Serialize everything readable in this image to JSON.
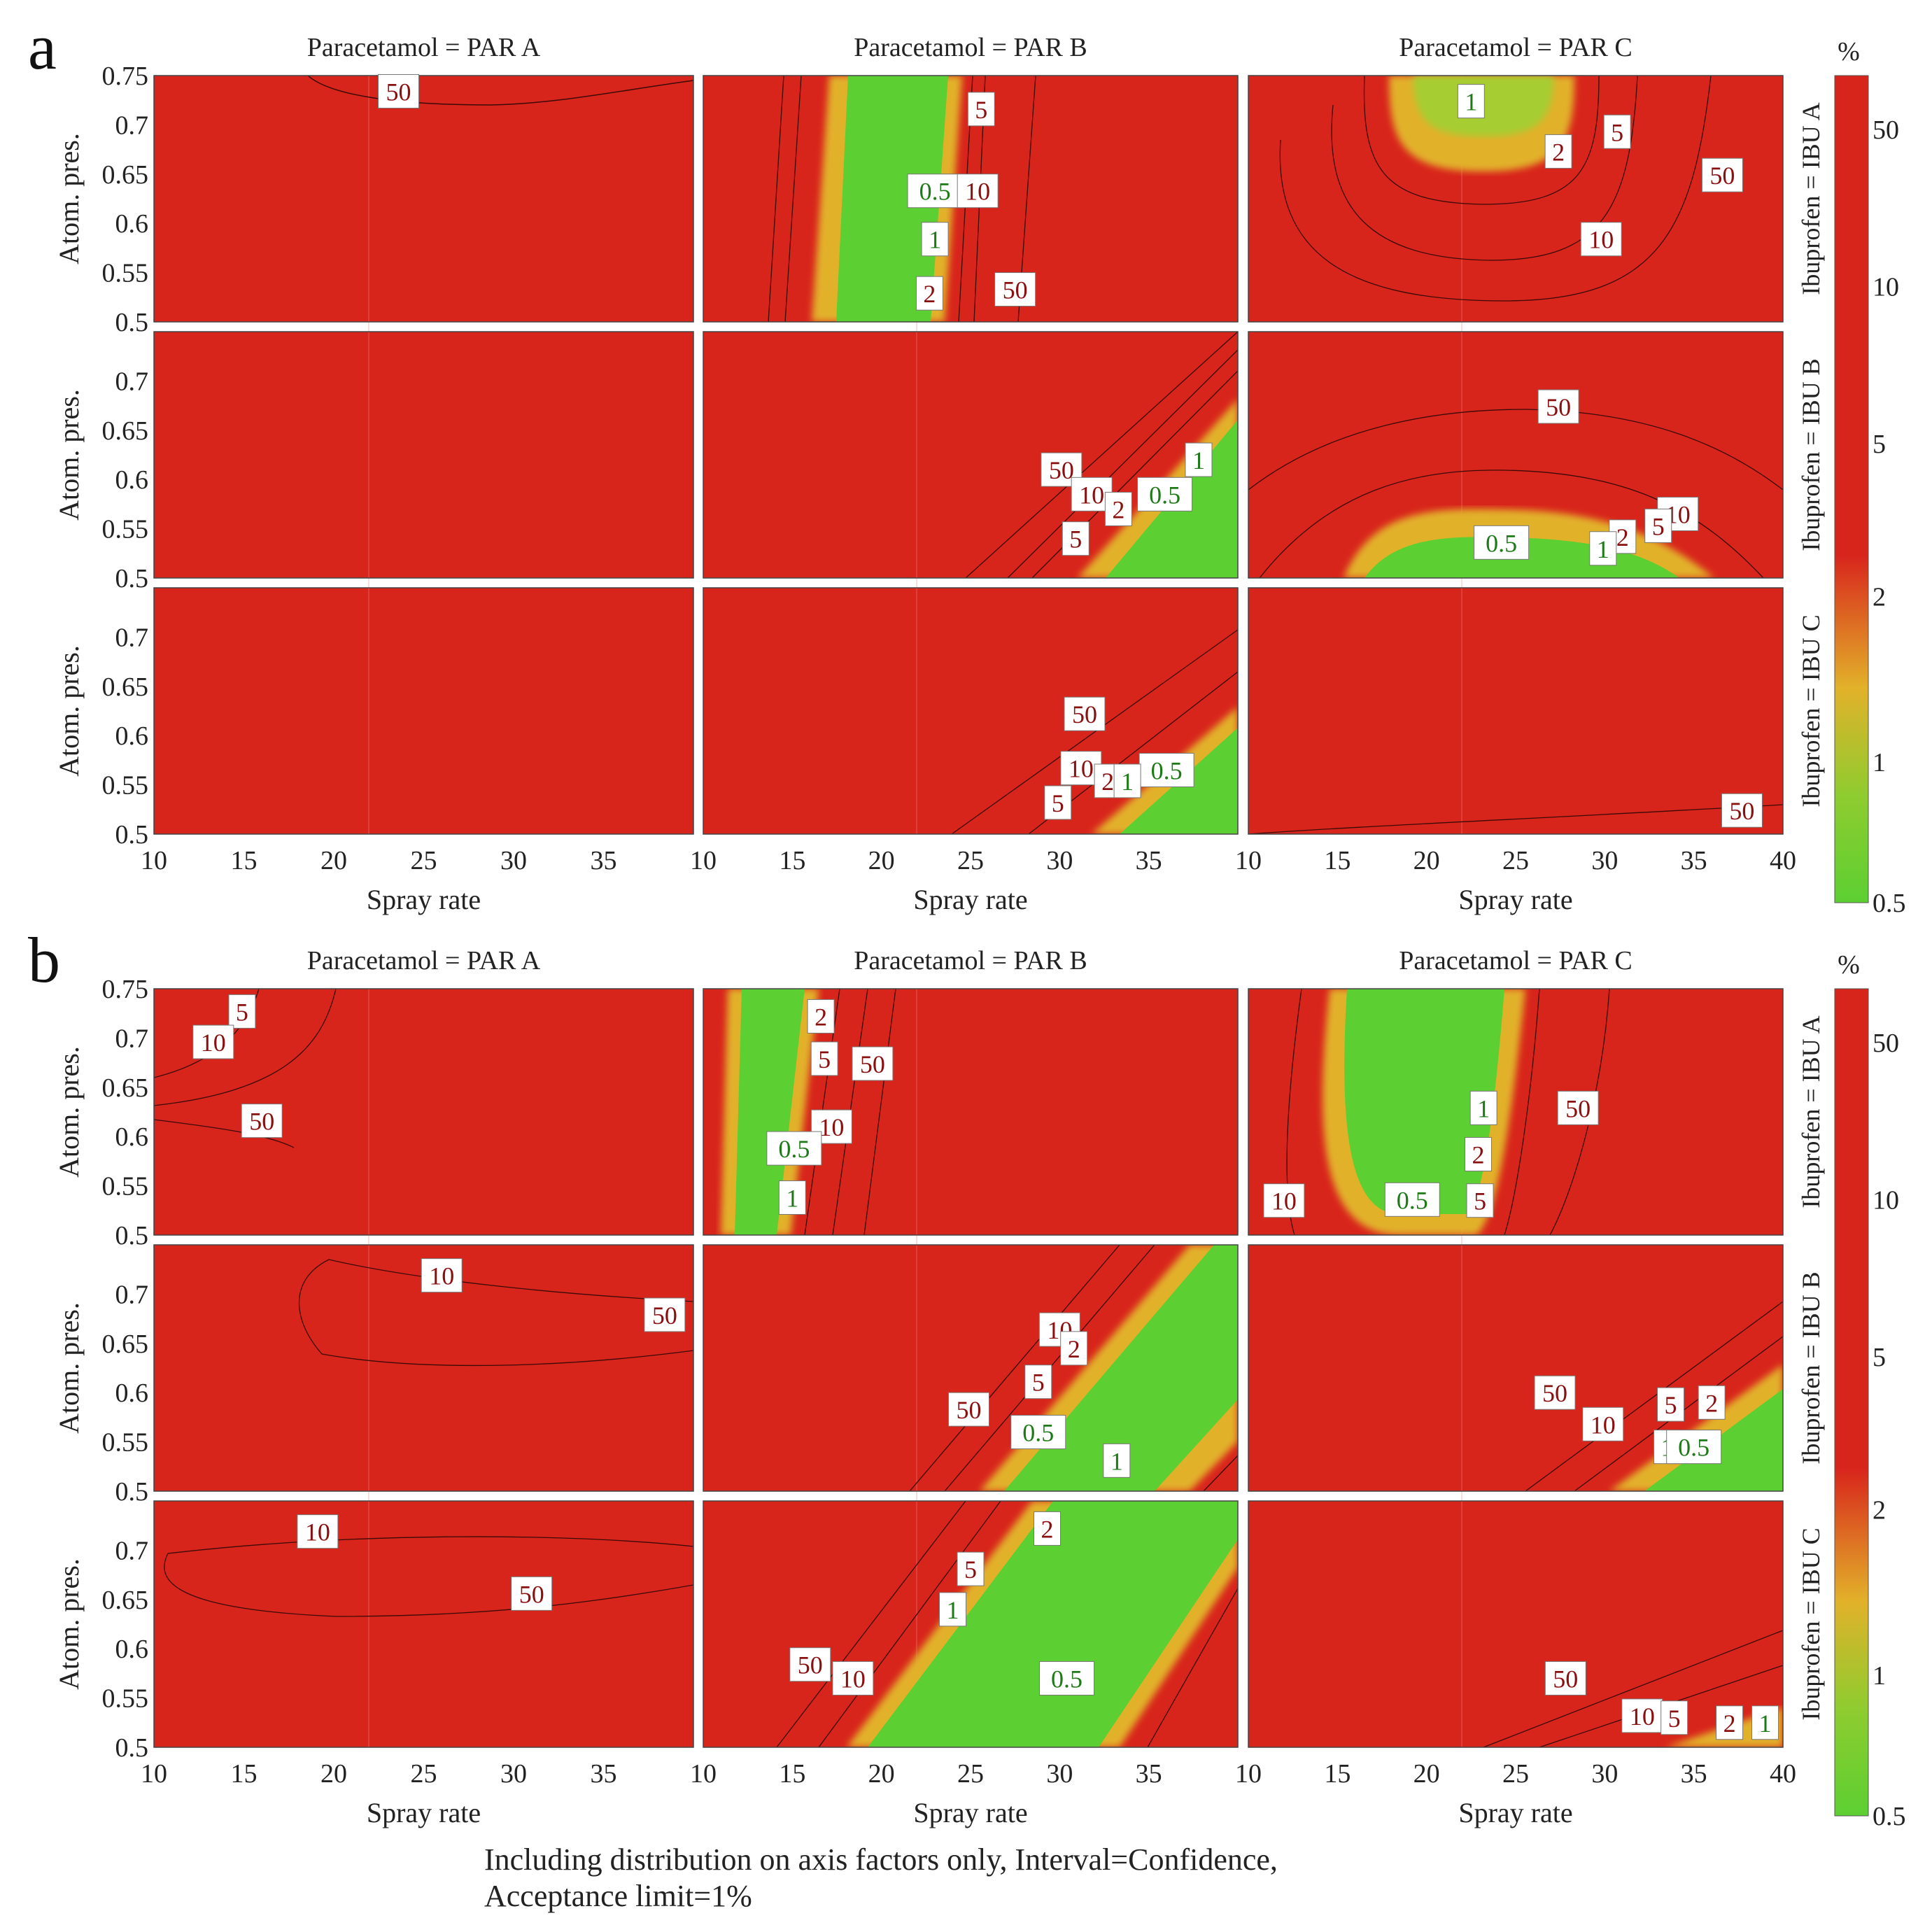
{
  "chart_data": {
    "type": "contour",
    "note": "Design-space probability-of-failure contour plots (%). Rows: Ibuprofen = IBU A, IBU B, IBU C. Columns: Paracetamol = PAR A, PAR B, PAR C.",
    "xlabel": "Spray rate",
    "ylabel": "Atom. pres.",
    "xlim": [
      10,
      40
    ],
    "ylim": [
      0.5,
      0.75
    ],
    "xticks": [
      "10",
      "15",
      "20",
      "25",
      "30",
      "35",
      "40"
    ],
    "yticks": [
      "0.5",
      "0.55",
      "0.6",
      "0.65",
      "0.7",
      "0.75"
    ],
    "column_titles": [
      "Paracetamol = PAR A",
      "Paracetamol = PAR B",
      "Paracetamol = PAR C"
    ],
    "row_titles": [
      "Ibuprofen = IBU A",
      "Ibuprofen = IBU B",
      "Ibuprofen = IBU C"
    ],
    "colorbar": {
      "unit": "%",
      "ticks": [
        "0.5",
        "1",
        "2",
        "5",
        "10",
        "50"
      ],
      "colors": {
        "low": "#5ccf32",
        "mid": "#e2b12a",
        "high": "#d8251c"
      }
    },
    "colors": {
      "red": "#d8251c",
      "green": "#5ccf32",
      "green_text": "#1d7a17",
      "red_text": "#8a0f0f"
    },
    "footer": [
      "Including distribution on axis factors only, Interval=Confidence,",
      "Acceptance limit=1%"
    ],
    "figures": [
      {
        "label": "a",
        "panels": [
          {
            "row": 0,
            "col": 0,
            "labels": [
              {
                "t": "50",
                "x": 23.6,
                "y": 0.734
              }
            ]
          },
          {
            "row": 0,
            "col": 1,
            "labels": [
              {
                "t": "5",
                "x": 25.6,
                "y": 0.716
              },
              {
                "t": "0.5",
                "x": 23.0,
                "y": 0.633
              },
              {
                "t": "10",
                "x": 25.4,
                "y": 0.633
              },
              {
                "t": "1",
                "x": 23.0,
                "y": 0.584
              },
              {
                "t": "2",
                "x": 22.7,
                "y": 0.529
              },
              {
                "t": "50",
                "x": 27.5,
                "y": 0.533
              }
            ]
          },
          {
            "row": 0,
            "col": 2,
            "labels": [
              {
                "t": "1",
                "x": 22.5,
                "y": 0.724
              },
              {
                "t": "5",
                "x": 30.7,
                "y": 0.693
              },
              {
                "t": "2",
                "x": 27.4,
                "y": 0.673
              },
              {
                "t": "50",
                "x": 36.6,
                "y": 0.649
              },
              {
                "t": "10",
                "x": 29.8,
                "y": 0.584
              }
            ]
          },
          {
            "row": 1,
            "col": 0,
            "labels": []
          },
          {
            "row": 1,
            "col": 1,
            "labels": [
              {
                "t": "1",
                "x": 37.8,
                "y": 0.62
              },
              {
                "t": "50",
                "x": 30.1,
                "y": 0.61
              },
              {
                "t": "10",
                "x": 31.8,
                "y": 0.585
              },
              {
                "t": "0.5",
                "x": 35.9,
                "y": 0.585
              },
              {
                "t": "2",
                "x": 33.3,
                "y": 0.57
              },
              {
                "t": "5",
                "x": 30.9,
                "y": 0.54
              }
            ]
          },
          {
            "row": 1,
            "col": 2,
            "labels": [
              {
                "t": "50",
                "x": 27.4,
                "y": 0.674
              },
              {
                "t": "10",
                "x": 34.1,
                "y": 0.565
              },
              {
                "t": "5",
                "x": 33.0,
                "y": 0.553
              },
              {
                "t": "2",
                "x": 31.0,
                "y": 0.542
              },
              {
                "t": "0.5",
                "x": 24.2,
                "y": 0.536
              },
              {
                "t": "1",
                "x": 29.9,
                "y": 0.53
              }
            ]
          },
          {
            "row": 2,
            "col": 0,
            "labels": []
          },
          {
            "row": 2,
            "col": 1,
            "labels": [
              {
                "t": "50",
                "x": 31.4,
                "y": 0.622
              },
              {
                "t": "10",
                "x": 31.2,
                "y": 0.567
              },
              {
                "t": "0.5",
                "x": 36.0,
                "y": 0.565
              },
              {
                "t": "2",
                "x": 32.7,
                "y": 0.554
              },
              {
                "t": "1",
                "x": 33.8,
                "y": 0.554
              },
              {
                "t": "5",
                "x": 29.9,
                "y": 0.532
              }
            ]
          },
          {
            "row": 2,
            "col": 2,
            "labels": [
              {
                "t": "50",
                "x": 37.7,
                "y": 0.524
              }
            ]
          }
        ]
      },
      {
        "label": "b",
        "panels": [
          {
            "row": 0,
            "col": 0,
            "labels": [
              {
                "t": "5",
                "x": 14.9,
                "y": 0.727
              },
              {
                "t": "10",
                "x": 13.3,
                "y": 0.696
              },
              {
                "t": "50",
                "x": 16.0,
                "y": 0.616
              }
            ]
          },
          {
            "row": 0,
            "col": 1,
            "labels": [
              {
                "t": "2",
                "x": 16.6,
                "y": 0.722
              },
              {
                "t": "5",
                "x": 16.8,
                "y": 0.679
              },
              {
                "t": "50",
                "x": 19.5,
                "y": 0.674
              },
              {
                "t": "10",
                "x": 17.2,
                "y": 0.61
              },
              {
                "t": "0.5",
                "x": 15.1,
                "y": 0.588
              },
              {
                "t": "1",
                "x": 15.0,
                "y": 0.538
              }
            ]
          },
          {
            "row": 0,
            "col": 2,
            "labels": [
              {
                "t": "1",
                "x": 23.2,
                "y": 0.629
              },
              {
                "t": "50",
                "x": 28.5,
                "y": 0.629
              },
              {
                "t": "2",
                "x": 22.9,
                "y": 0.582
              },
              {
                "t": "10",
                "x": 12.0,
                "y": 0.535
              },
              {
                "t": "0.5",
                "x": 19.2,
                "y": 0.536
              },
              {
                "t": "5",
                "x": 23.0,
                "y": 0.535
              }
            ]
          },
          {
            "row": 1,
            "col": 0,
            "labels": [
              {
                "t": "10",
                "x": 26.0,
                "y": 0.719
              },
              {
                "t": "50",
                "x": 38.4,
                "y": 0.679
              }
            ]
          },
          {
            "row": 1,
            "col": 1,
            "labels": [
              {
                "t": "10",
                "x": 30.0,
                "y": 0.664
              },
              {
                "t": "2",
                "x": 30.8,
                "y": 0.645
              },
              {
                "t": "5",
                "x": 28.8,
                "y": 0.611
              },
              {
                "t": "50",
                "x": 24.9,
                "y": 0.583
              },
              {
                "t": "0.5",
                "x": 28.8,
                "y": 0.56
              },
              {
                "t": "1",
                "x": 33.2,
                "y": 0.531
              }
            ]
          },
          {
            "row": 1,
            "col": 2,
            "labels": [
              {
                "t": "50",
                "x": 27.2,
                "y": 0.6
              },
              {
                "t": "5",
                "x": 33.7,
                "y": 0.588
              },
              {
                "t": "2",
                "x": 36.0,
                "y": 0.59
              },
              {
                "t": "10",
                "x": 29.9,
                "y": 0.568
              },
              {
                "t": "1",
                "x": 33.5,
                "y": 0.545
              },
              {
                "t": "0.5",
                "x": 35.0,
                "y": 0.545
              }
            ]
          },
          {
            "row": 2,
            "col": 0,
            "labels": [
              {
                "t": "10",
                "x": 19.1,
                "y": 0.719
              },
              {
                "t": "50",
                "x": 31.0,
                "y": 0.656
              }
            ]
          },
          {
            "row": 2,
            "col": 1,
            "labels": [
              {
                "t": "2",
                "x": 29.3,
                "y": 0.722
              },
              {
                "t": "5",
                "x": 25.0,
                "y": 0.681
              },
              {
                "t": "1",
                "x": 24.0,
                "y": 0.64
              },
              {
                "t": "50",
                "x": 16.0,
                "y": 0.584
              },
              {
                "t": "10",
                "x": 18.4,
                "y": 0.57
              },
              {
                "t": "0.5",
                "x": 30.4,
                "y": 0.57
              }
            ]
          },
          {
            "row": 2,
            "col": 2,
            "labels": [
              {
                "t": "50",
                "x": 27.8,
                "y": 0.57
              },
              {
                "t": "10",
                "x": 32.1,
                "y": 0.532
              },
              {
                "t": "5",
                "x": 33.9,
                "y": 0.53
              },
              {
                "t": "2",
                "x": 37.0,
                "y": 0.525
              },
              {
                "t": "1",
                "x": 39.0,
                "y": 0.525
              }
            ]
          }
        ]
      }
    ]
  }
}
